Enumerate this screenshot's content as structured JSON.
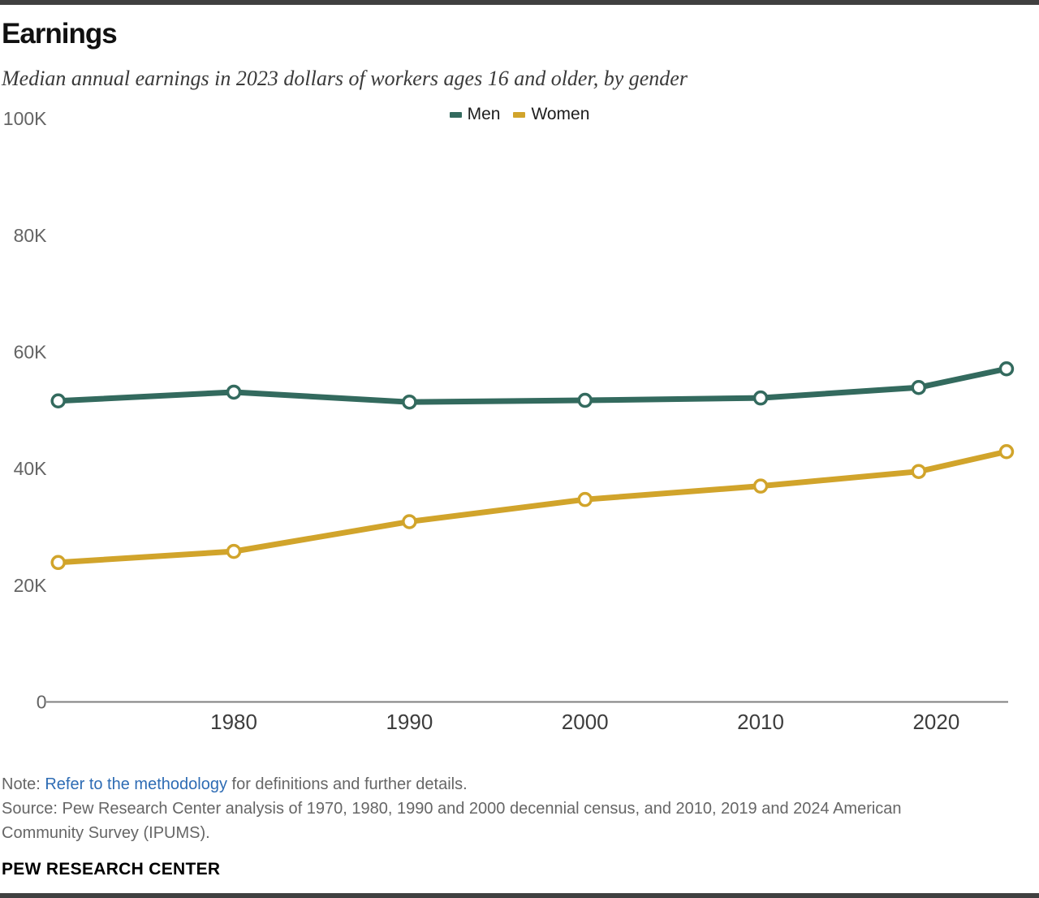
{
  "header": {
    "title": "Earnings",
    "subtitle": "Median annual earnings in 2023 dollars of workers ages 16 and older, by gender"
  },
  "chart_data": {
    "type": "line",
    "title": "Earnings",
    "subtitle": "Median annual earnings in 2023 dollars of workers ages 16 and older, by gender",
    "x": [
      1970,
      1980,
      1990,
      2000,
      2010,
      2019,
      2024
    ],
    "series": [
      {
        "name": "Men",
        "color": "#336a5e",
        "values": [
          51600,
          53100,
          51400,
          51700,
          52100,
          53900,
          57100
        ]
      },
      {
        "name": "Women",
        "color": "#d1a42b",
        "values": [
          23900,
          25800,
          30900,
          34700,
          37000,
          39500,
          42900
        ]
      }
    ],
    "ylim": [
      0,
      100000
    ],
    "xlim": [
      1970,
      2024
    ],
    "y_ticks": [
      {
        "value": 0,
        "label": "0"
      },
      {
        "value": 20000,
        "label": "20K"
      },
      {
        "value": 40000,
        "label": "40K"
      },
      {
        "value": 60000,
        "label": "60K"
      },
      {
        "value": 80000,
        "label": "80K"
      },
      {
        "value": 100000,
        "label": "100K"
      }
    ],
    "x_ticks": [
      {
        "value": 1980,
        "label": "1980"
      },
      {
        "value": 1990,
        "label": "1990"
      },
      {
        "value": 2000,
        "label": "2000"
      },
      {
        "value": 2010,
        "label": "2010"
      },
      {
        "value": 2020,
        "label": "2020"
      }
    ],
    "grid": false,
    "legend_position": "top-center",
    "axis_color": "#808080",
    "marker": {
      "fill": "#ffffff",
      "radius": 7.5,
      "stroke_width": 3.5
    },
    "line_width": 7
  },
  "footer": {
    "note_prefix": "Note: ",
    "note_link": "Refer to the methodology",
    "note_suffix": " for definitions and further details.",
    "source": "Source: Pew Research Center analysis of 1970, 1980, 1990 and 2000 decennial census, and 2010, 2019 and 2024 American Community Survey (IPUMS).",
    "brand": "PEW RESEARCH CENTER"
  },
  "colors": {
    "men": "#336a5e",
    "women": "#d1a42b",
    "link": "#2e6cb4",
    "bar": "#404040",
    "axis": "#808080"
  }
}
